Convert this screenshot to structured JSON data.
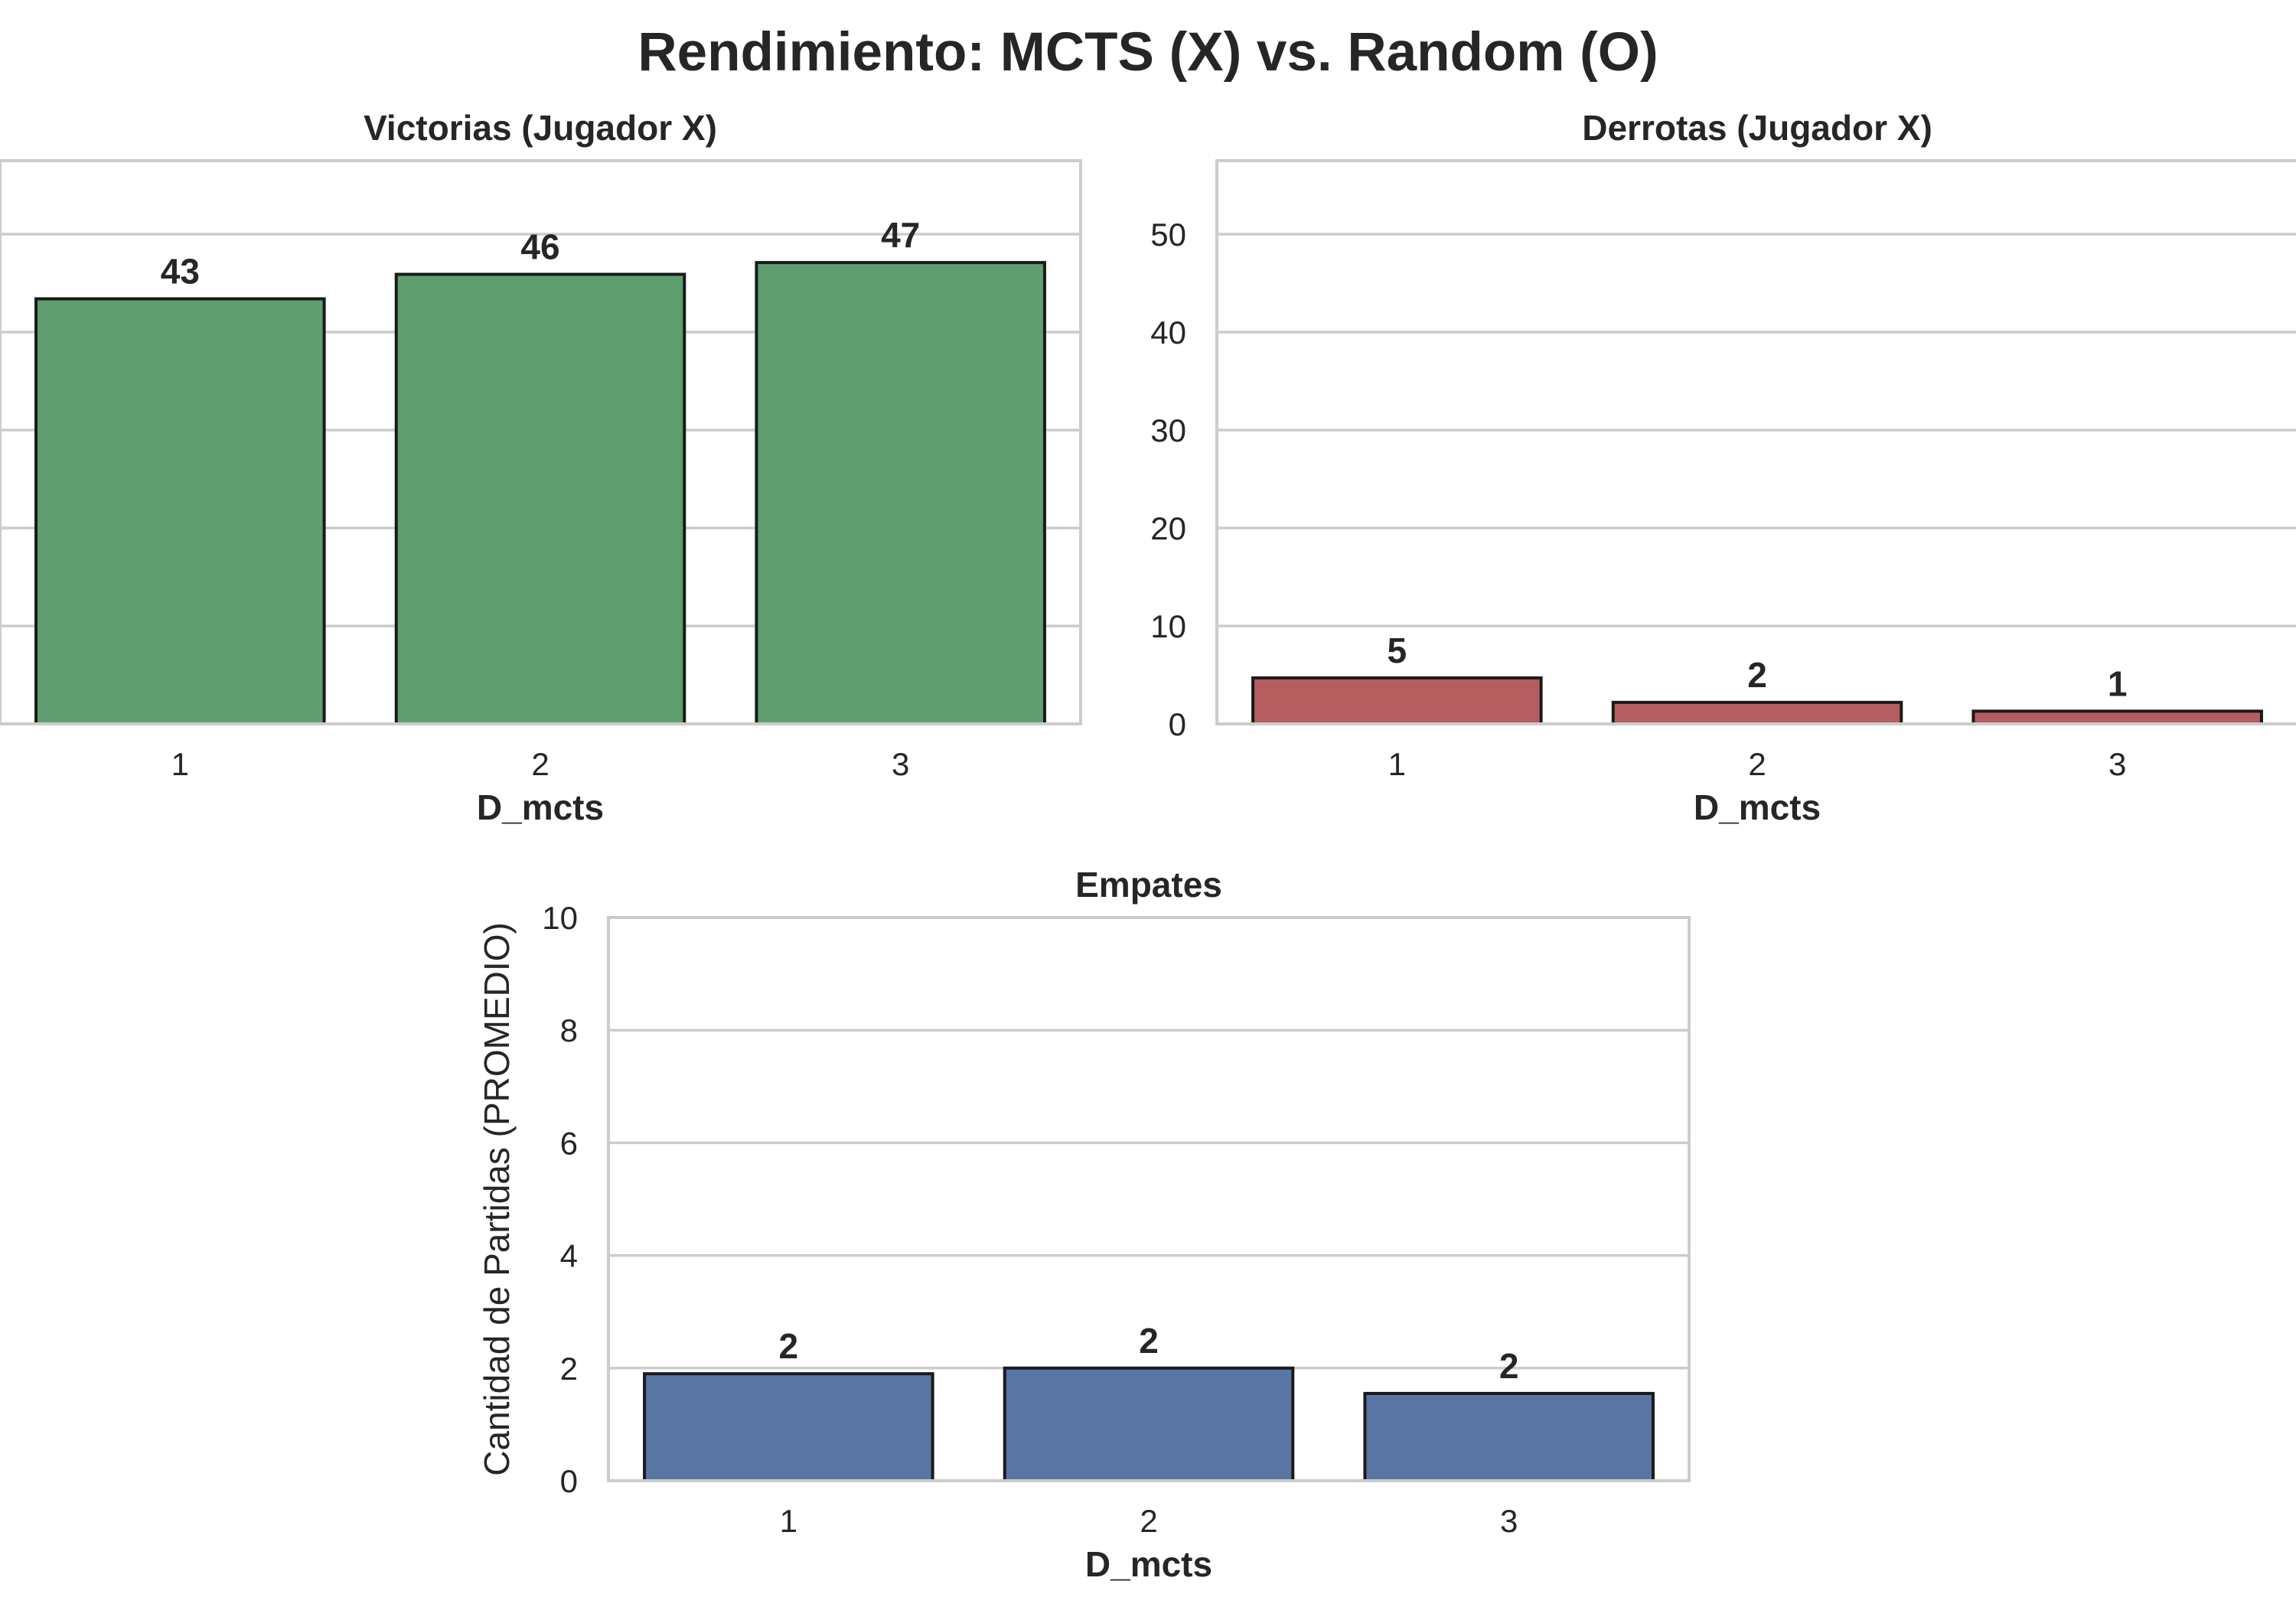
{
  "figure_title": "Rendimiento: MCTS (X) vs. Random (O)",
  "chart_data": [
    {
      "type": "bar",
      "title": "Victorias (Jugador X)",
      "xlabel": "D_mcts",
      "ylabel": "",
      "categories": [
        "1",
        "2",
        "3"
      ],
      "values": [
        43.4,
        45.9,
        47.1
      ],
      "value_labels": [
        "43",
        "46",
        "47"
      ],
      "ylim": [
        0,
        57.5
      ],
      "yticks": [
        0,
        10,
        20,
        30,
        40,
        50
      ],
      "show_ytick_labels": false,
      "color": "#5f9e6e",
      "grid": true
    },
    {
      "type": "bar",
      "title": "Derrotas (Jugador X)",
      "xlabel": "D_mcts",
      "ylabel": "",
      "categories": [
        "1",
        "2",
        "3"
      ],
      "values": [
        4.7,
        2.2,
        1.3
      ],
      "value_labels": [
        "5",
        "2",
        "1"
      ],
      "ylim": [
        0,
        57.5
      ],
      "yticks": [
        0,
        10,
        20,
        30,
        40,
        50
      ],
      "show_ytick_labels": true,
      "color": "#b55d60",
      "grid": true
    },
    {
      "type": "bar",
      "title": "Empates",
      "xlabel": "D_mcts",
      "ylabel": "Cantidad de Partidas (PROMEDIO)",
      "categories": [
        "1",
        "2",
        "3"
      ],
      "values": [
        1.9,
        2.0,
        1.55
      ],
      "value_labels": [
        "2",
        "2",
        "2"
      ],
      "ylim": [
        0,
        10
      ],
      "yticks": [
        0,
        2,
        4,
        6,
        8,
        10
      ],
      "show_ytick_labels": true,
      "color": "#5975a4",
      "grid": true
    }
  ]
}
